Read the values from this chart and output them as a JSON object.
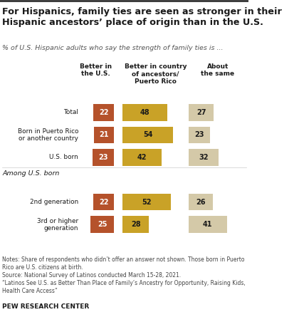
{
  "title": "For Hispanics, family ties are seen as stronger in their\nHispanic ancestors’ place of origin than in the U.S.",
  "subtitle": "% of U.S. Hispanic adults who say the strength of family ties is ...",
  "col_headers": [
    "Better in\nthe U.S.",
    "Better in country\nof ancestors/\nPuerto Rico",
    "About\nthe same"
  ],
  "categories": [
    "Total",
    "Born in Puerto Rico\nor another country",
    "U.S. born",
    "2nd generation",
    "3rd or higher\ngeneration"
  ],
  "values": [
    [
      22,
      48,
      27
    ],
    [
      21,
      54,
      23
    ],
    [
      23,
      42,
      32
    ],
    [
      22,
      52,
      26
    ],
    [
      25,
      28,
      41
    ]
  ],
  "colors": [
    "#b5522b",
    "#c9a227",
    "#d4c9a8"
  ],
  "section_label": "Among U.S. born",
  "notes": "Notes: Share of respondents who didn’t offer an answer not shown. Those born in Puerto\nRico are U.S. citizens at birth.\nSource: National Survey of Latinos conducted March 15-28, 2021.\n“Latinos See U.S. as Better Than Place of Family’s Ancestry for Opportunity, Raising Kids,\nHealth Care Access”",
  "footer": "PEW RESEARCH CENTER",
  "background_color": "#ffffff"
}
